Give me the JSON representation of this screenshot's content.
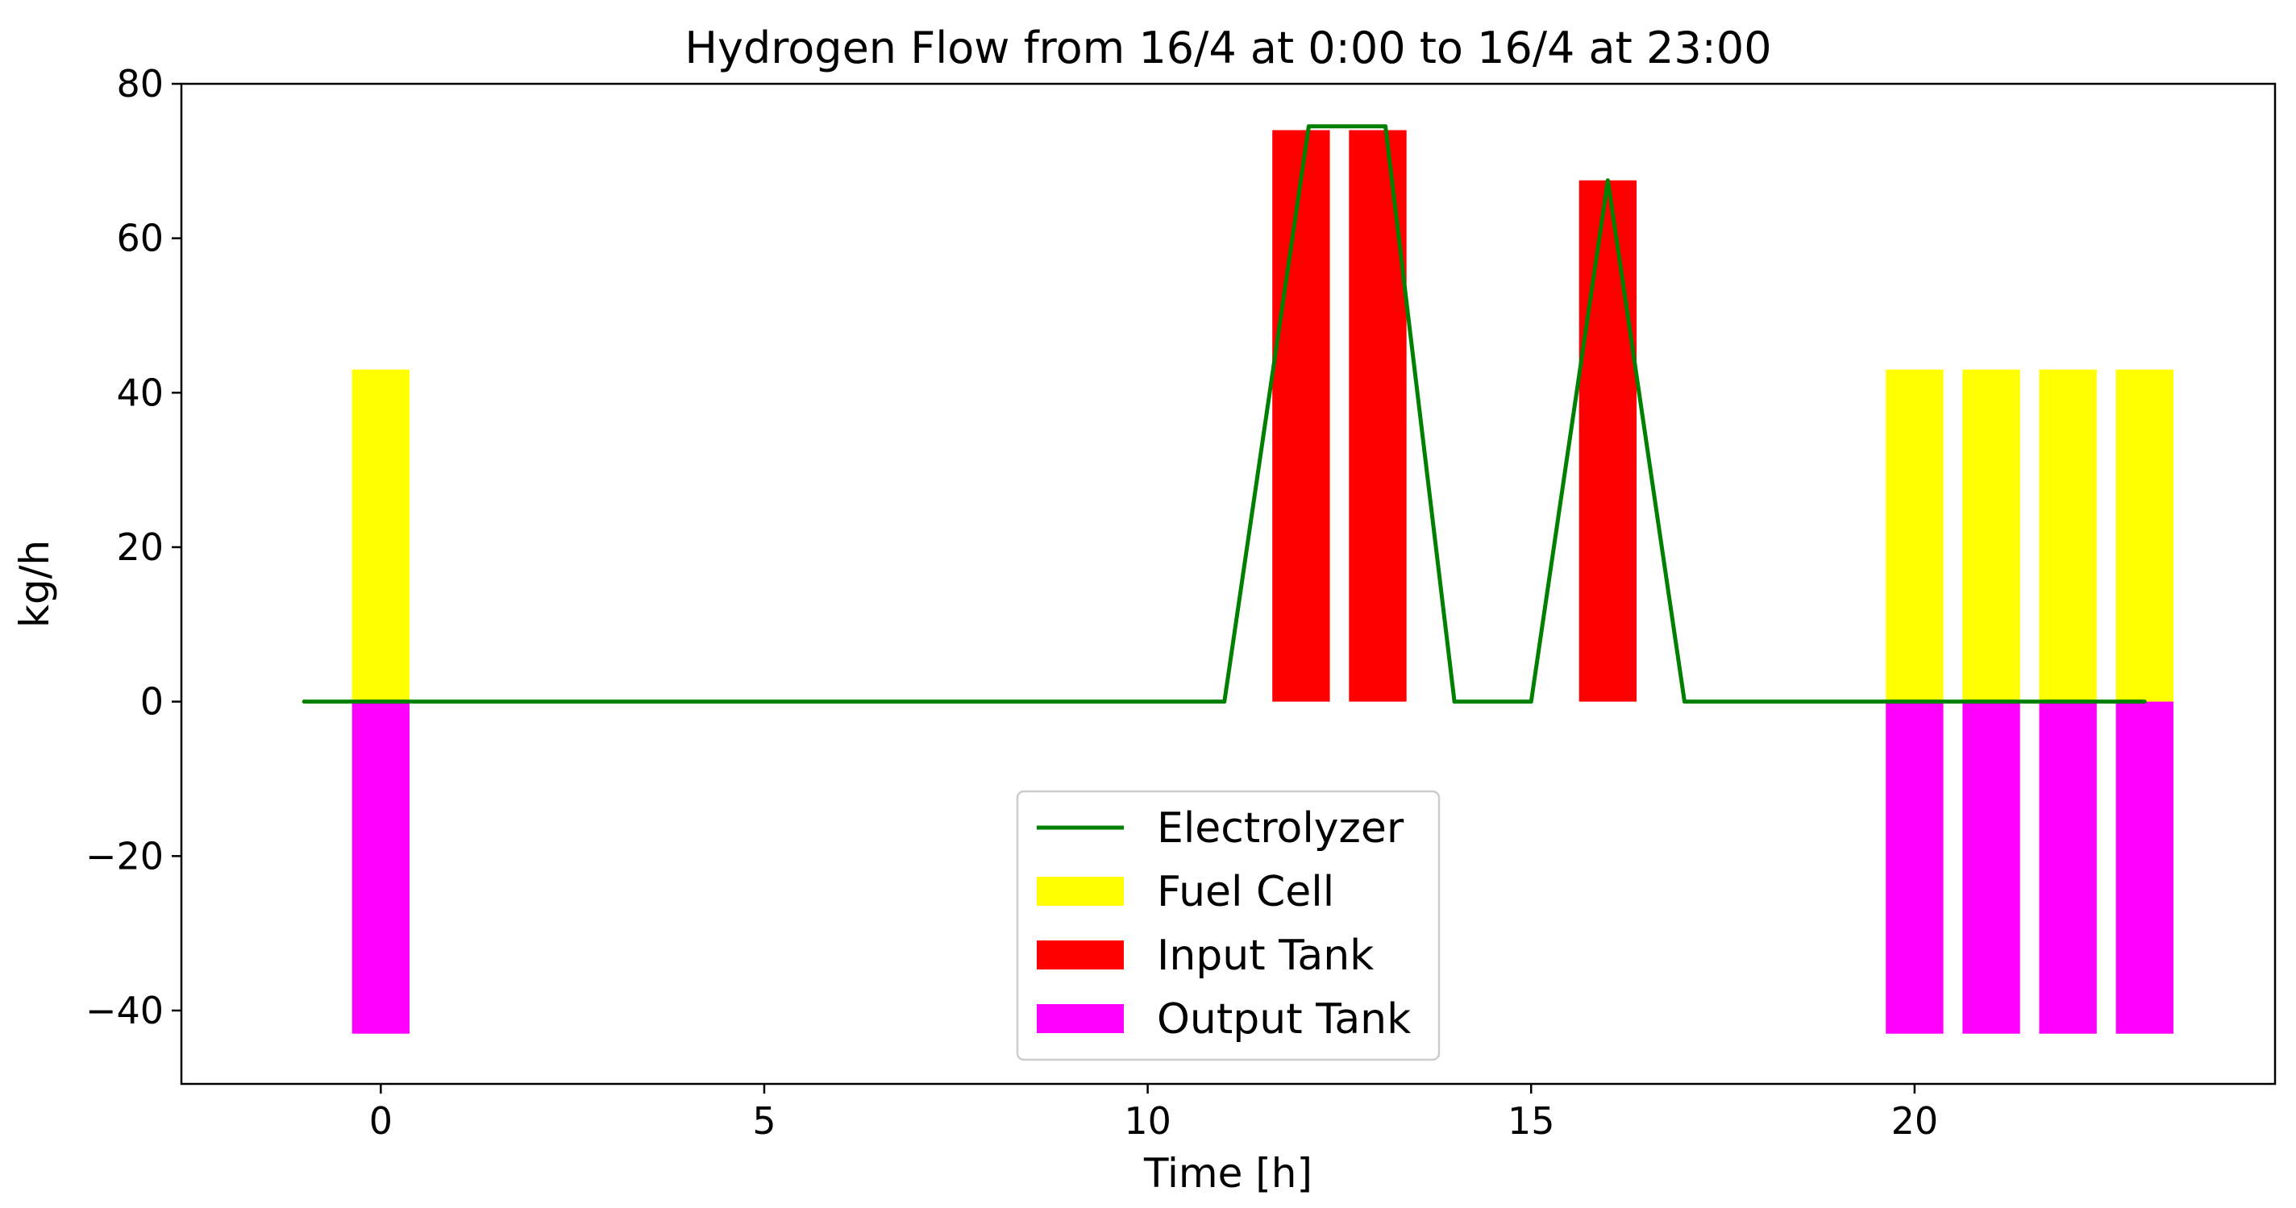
{
  "chart_data": {
    "type": "bar",
    "title": "Hydrogen Flow from 16/4 at 0:00 to 16/4 at 23:00",
    "xlabel": "Time [h]",
    "ylabel": "kg/h",
    "xlim": [
      -2.6,
      24.7
    ],
    "ylim": [
      -49.5,
      80
    ],
    "xticks": [
      0,
      5,
      10,
      15,
      20
    ],
    "yticks": [
      -40,
      -20,
      0,
      20,
      40,
      60,
      80
    ],
    "grid": false,
    "legend_position": "lower-center",
    "x": [
      0,
      1,
      2,
      3,
      4,
      5,
      6,
      7,
      8,
      9,
      10,
      11,
      12,
      13,
      14,
      15,
      16,
      17,
      18,
      19,
      20,
      21,
      22,
      23
    ],
    "bar_width": 0.75,
    "series": [
      {
        "name": "Electrolyzer",
        "kind": "line",
        "color": "#008000",
        "x": [
          -1,
          0,
          1,
          2,
          3,
          4,
          5,
          6,
          7,
          8,
          9,
          10,
          11,
          12,
          13,
          14,
          15,
          16,
          17,
          18,
          19,
          20,
          21,
          22,
          23
        ],
        "values": [
          0,
          0,
          0,
          0,
          0,
          0,
          0,
          0,
          0,
          0,
          0,
          0,
          0,
          74.5,
          74.5,
          0,
          0,
          67.5,
          0,
          0,
          0,
          0,
          0,
          0,
          0
        ],
        "x_points": [
          -1,
          0,
          1,
          2,
          3,
          4,
          5,
          6,
          7,
          8,
          9,
          10,
          11,
          12.1,
          13.1,
          14,
          15,
          16,
          17,
          18,
          19,
          20,
          21,
          22,
          23
        ]
      },
      {
        "name": "Fuel Cell",
        "kind": "bar",
        "color": "#ffff00",
        "values": [
          43,
          0,
          0,
          0,
          0,
          0,
          0,
          0,
          0,
          0,
          0,
          0,
          0,
          0,
          0,
          0,
          0,
          0,
          0,
          0,
          43,
          43,
          43,
          43
        ]
      },
      {
        "name": "Input Tank",
        "kind": "bar",
        "color": "#ff0000",
        "values": [
          0,
          0,
          0,
          0,
          0,
          0,
          0,
          0,
          0,
          0,
          0,
          0,
          74,
          74,
          0,
          0,
          67.5,
          0,
          0,
          0,
          0,
          0,
          0,
          0
        ]
      },
      {
        "name": "Output Tank",
        "kind": "bar",
        "color": "#ff00ff",
        "values": [
          -43,
          0,
          0,
          0,
          0,
          0,
          0,
          0,
          0,
          0,
          0,
          0,
          0,
          0,
          0,
          0,
          0,
          0,
          0,
          0,
          -43,
          -43,
          -43,
          -43
        ]
      }
    ]
  }
}
